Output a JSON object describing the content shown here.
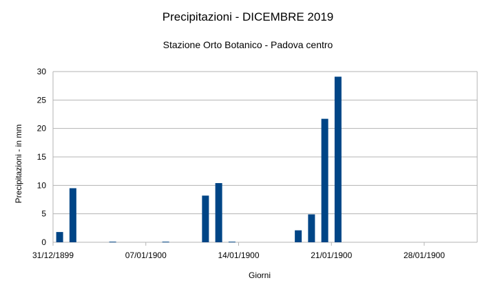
{
  "chart_data": {
    "type": "bar",
    "title": "Precipitazioni - DICEMBRE 2019",
    "subtitle": "Stazione Orto Botanico - Padova centro",
    "xlabel": "Giorni",
    "ylabel": "Precipitazioni - in mm",
    "ylim": [
      0,
      30
    ],
    "yticks": [
      0,
      5,
      10,
      15,
      20,
      25,
      30
    ],
    "xlim": [
      "31/12/1899",
      "01/02/1900"
    ],
    "xticks": [
      "31/12/1899",
      "07/01/1900",
      "14/01/1900",
      "21/01/1900",
      "28/01/1900"
    ],
    "grid": true,
    "legend": "none",
    "bar_color": "#004586",
    "x": [
      "31/12/1899",
      "01/01/1900",
      "02/01/1900",
      "03/01/1900",
      "04/01/1900",
      "05/01/1900",
      "06/01/1900",
      "07/01/1900",
      "08/01/1900",
      "09/01/1900",
      "10/01/1900",
      "11/01/1900",
      "12/01/1900",
      "13/01/1900",
      "14/01/1900",
      "15/01/1900",
      "16/01/1900",
      "17/01/1900",
      "18/01/1900",
      "19/01/1900",
      "20/01/1900",
      "21/01/1900",
      "22/01/1900",
      "23/01/1900",
      "24/01/1900",
      "25/01/1900",
      "26/01/1900",
      "27/01/1900",
      "28/01/1900",
      "29/01/1900",
      "30/01/1900"
    ],
    "values": [
      1.8,
      9.5,
      0,
      0,
      0.1,
      0,
      0,
      0,
      0.1,
      0,
      0,
      8.2,
      10.4,
      0.1,
      0,
      0,
      0,
      0,
      2.1,
      4.9,
      21.7,
      29.1,
      0,
      0,
      0,
      0,
      0,
      0,
      0,
      0,
      0
    ]
  }
}
